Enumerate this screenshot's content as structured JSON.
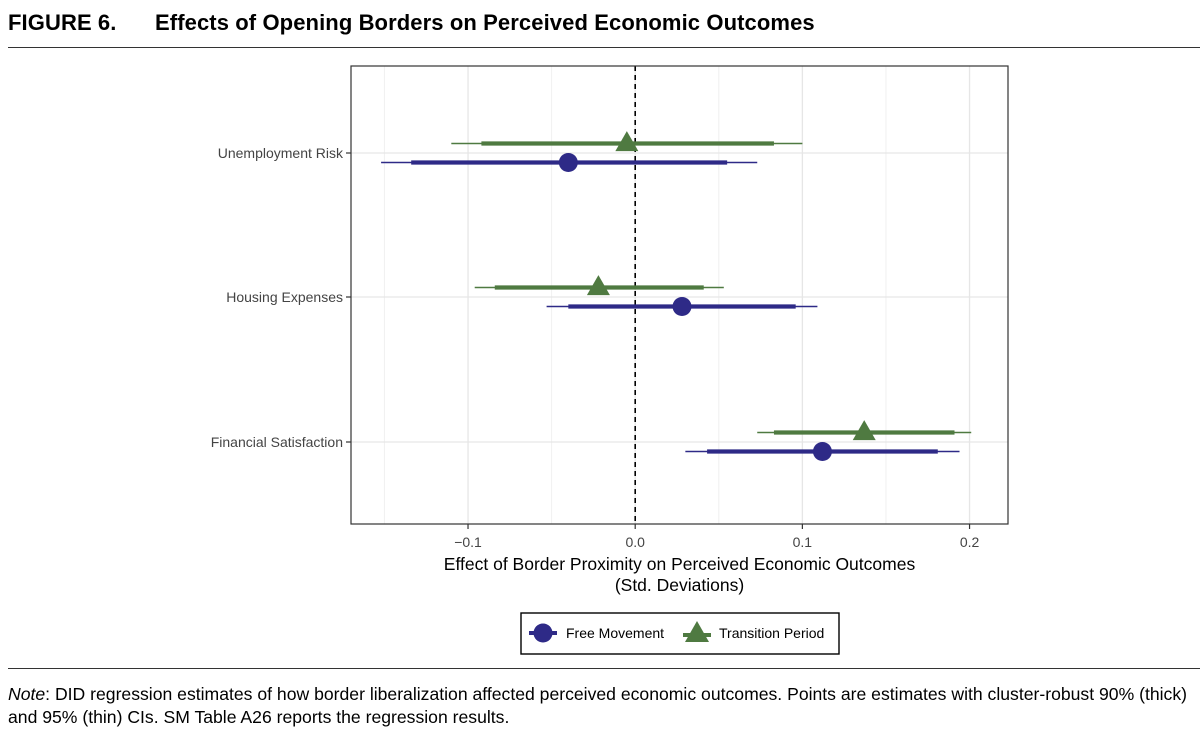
{
  "figure": {
    "number": "FIGURE 6.",
    "title": "Effects of Opening Borders on Perceived Economic Outcomes"
  },
  "note": {
    "label": "Note",
    "text": ": DID regression estimates of how border liberalization affected perceived economic outcomes. Points are estimates with cluster-robust 90% (thick) and 95% (thin) CIs. SM Table A26 reports the regression results."
  },
  "chart_data": {
    "type": "coefficient-plot",
    "xlabel": "Effect of Border Proximity on Perceived Economic Outcomes",
    "xlabel_line2": "(Std. Deviations)",
    "xlim": [
      -0.17,
      0.223
    ],
    "xticks": [
      -0.1,
      0.0,
      0.1,
      0.2
    ],
    "xtick_labels": [
      "−0.1",
      "0.0",
      "0.1",
      "0.2"
    ],
    "reference_line": 0.0,
    "grid": true,
    "legend_position": "bottom",
    "categories": [
      "Unemployment Risk",
      "Housing Expenses",
      "Financial Satisfaction"
    ],
    "series": [
      {
        "name": "Free Movement",
        "marker": "circle",
        "color": "#2e2a87",
        "estimates": [
          -0.04,
          0.028,
          0.112
        ],
        "ci90": [
          [
            -0.134,
            0.055
          ],
          [
            -0.04,
            0.096
          ],
          [
            0.043,
            0.181
          ]
        ],
        "ci95": [
          [
            -0.152,
            0.073
          ],
          [
            -0.053,
            0.109
          ],
          [
            0.03,
            0.194
          ]
        ]
      },
      {
        "name": "Transition Period",
        "marker": "triangle",
        "color": "#4f7a41",
        "estimates": [
          -0.005,
          -0.022,
          0.137
        ],
        "ci90": [
          [
            -0.092,
            0.083
          ],
          [
            -0.084,
            0.041
          ],
          [
            0.083,
            0.191
          ]
        ],
        "ci95": [
          [
            -0.11,
            0.1
          ],
          [
            -0.096,
            0.053
          ],
          [
            0.073,
            0.201
          ]
        ]
      }
    ]
  }
}
